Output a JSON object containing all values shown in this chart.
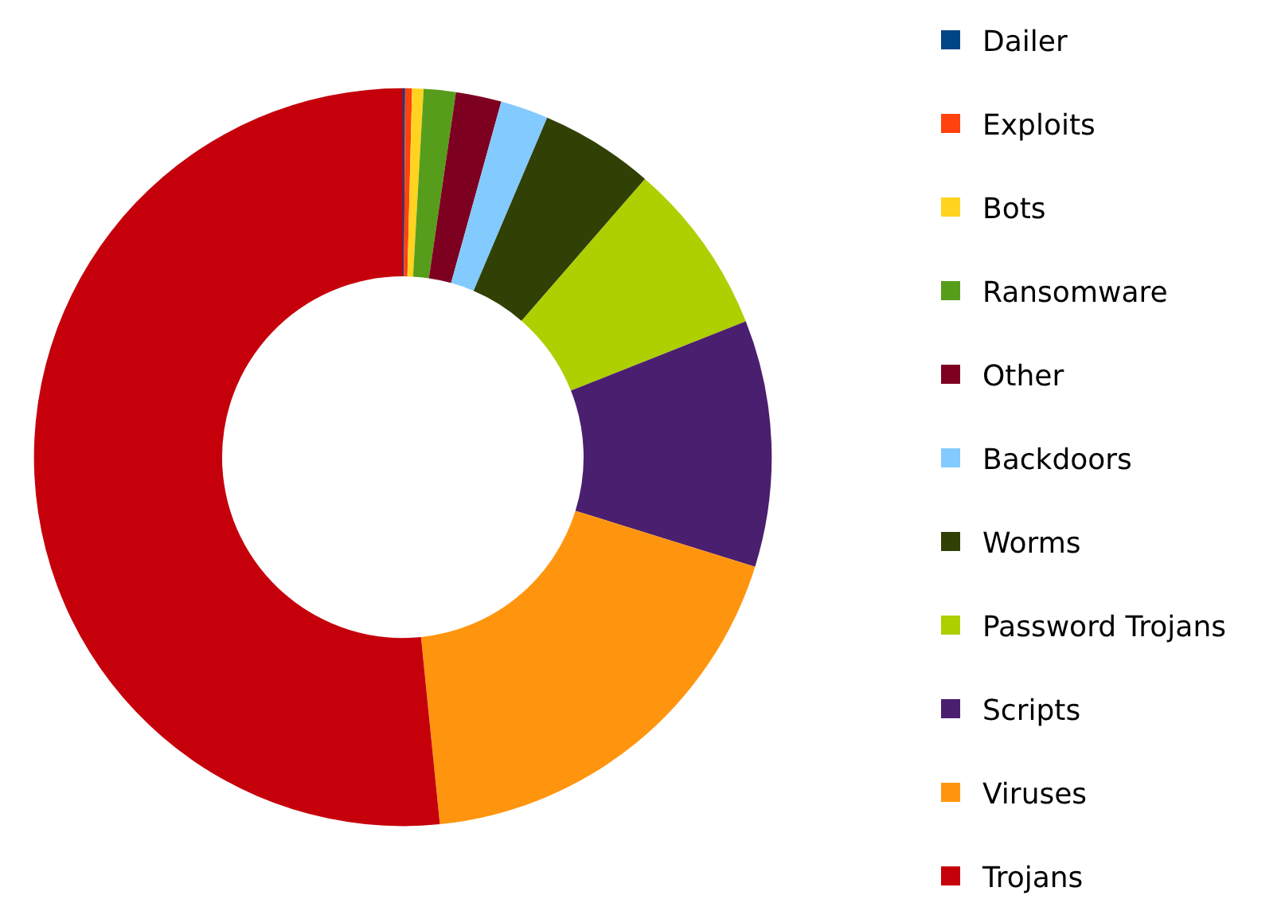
{
  "chart_data": {
    "type": "donut",
    "categories": [
      "Dailer",
      "Exploits",
      "Bots",
      "Ransomware",
      "Other",
      "Backdoors",
      "Worms",
      "Password Trojans",
      "Scripts",
      "Viruses",
      "Trojans"
    ],
    "values": [
      0.1,
      0.3,
      0.5,
      1.4,
      2.0,
      2.1,
      5.0,
      7.6,
      10.8,
      18.6,
      51.6
    ],
    "colors": [
      "#004586",
      "#ff420e",
      "#ffd320",
      "#579d1c",
      "#7e0021",
      "#83caff",
      "#314004",
      "#aecf00",
      "#4b1f6f",
      "#ff950e",
      "#c5000b"
    ],
    "legend": "right"
  }
}
